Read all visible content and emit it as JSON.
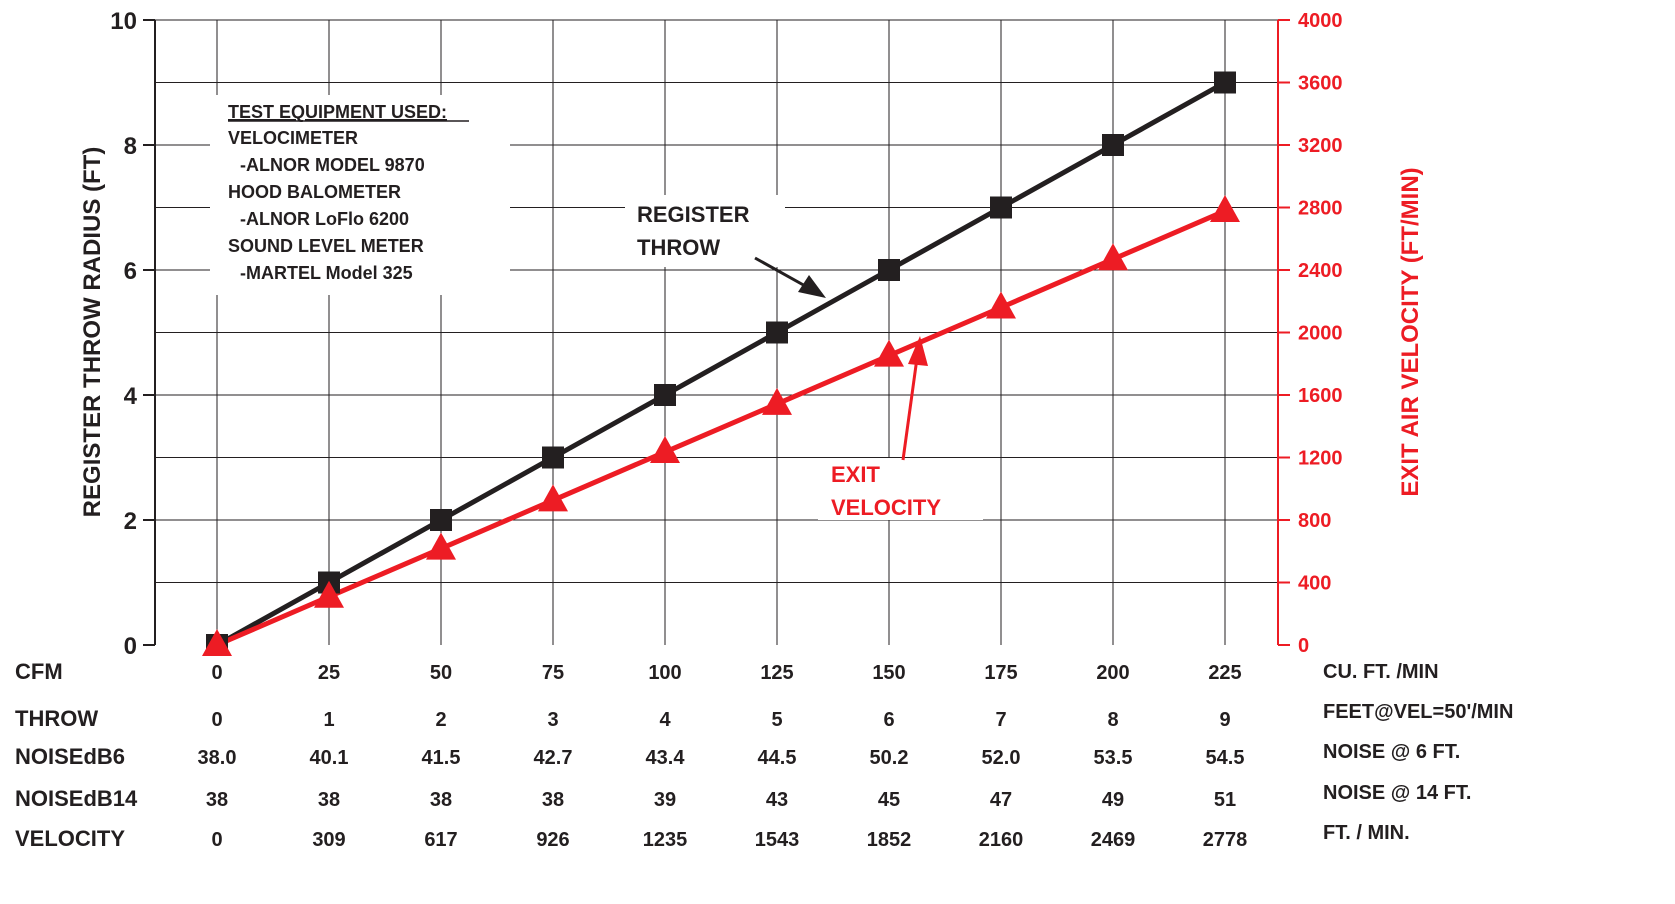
{
  "chart_data": {
    "type": "line",
    "x": [
      0,
      25,
      50,
      75,
      100,
      125,
      150,
      175,
      200,
      225
    ],
    "xlim": [
      0,
      225
    ],
    "ylim_left": [
      0,
      10
    ],
    "ylim_right": [
      0,
      4000
    ],
    "y_ticks_left": [
      "0",
      "2",
      "4",
      "6",
      "8",
      "10"
    ],
    "y_ticks_right": [
      "0",
      "400",
      "800",
      "1200",
      "1600",
      "2000",
      "2400",
      "2800",
      "3200",
      "3600",
      "4000"
    ],
    "ylabel_left": "REGISTER THROW RADIUS (FT)",
    "ylabel_right": "EXIT AIR VELOCITY (FT/MIN)",
    "grid": true,
    "series": [
      {
        "name": "REGISTER THROW",
        "axis": "left",
        "marker": "square",
        "color": "#231f20",
        "values": [
          0,
          1,
          2,
          3,
          4,
          5,
          6,
          7,
          8,
          9
        ]
      },
      {
        "name": "EXIT VELOCITY",
        "axis": "right",
        "marker": "triangle",
        "color": "#ed1c24",
        "values": [
          0,
          309,
          617,
          926,
          1235,
          1543,
          1852,
          2160,
          2469,
          2778
        ]
      }
    ],
    "annotations": {
      "throw_label": [
        "REGISTER",
        "THROW"
      ],
      "velocity_label": [
        "EXIT",
        "VELOCITY"
      ]
    },
    "equipment_box": {
      "title": "TEST EQUIPMENT USED:",
      "lines": [
        "VELOCIMETER",
        "-ALNOR MODEL 9870",
        "HOOD BALOMETER",
        "-ALNOR LoFlo 6200",
        "SOUND LEVEL METER",
        "-MARTEL Model 325"
      ]
    },
    "table": [
      {
        "label": "CFM",
        "unit": "CU. FT. /MIN",
        "values": [
          "0",
          "25",
          "50",
          "75",
          "100",
          "125",
          "150",
          "175",
          "200",
          "225"
        ]
      },
      {
        "label": "THROW",
        "unit": "FEET@VEL=50'/MIN",
        "values": [
          "0",
          "1",
          "2",
          "3",
          "4",
          "5",
          "6",
          "7",
          "8",
          "9"
        ]
      },
      {
        "label": "NOISEdB6",
        "unit": "NOISE @ 6 FT.",
        "values": [
          "38.0",
          "40.1",
          "41.5",
          "42.7",
          "43.4",
          "44.5",
          "50.2",
          "52.0",
          "53.5",
          "54.5"
        ]
      },
      {
        "label": "NOISEdB14",
        "unit": "NOISE @ 14 FT.",
        "values": [
          "38",
          "38",
          "38",
          "38",
          "39",
          "43",
          "45",
          "47",
          "49",
          "51"
        ]
      },
      {
        "label": "VELOCITY",
        "unit": "FT. / MIN.",
        "values": [
          "0",
          "309",
          "617",
          "926",
          "1235",
          "1543",
          "1852",
          "2160",
          "2469",
          "2778"
        ]
      }
    ],
    "colors": {
      "black": "#231f20",
      "red": "#ed1c24",
      "grid": "#231f20"
    }
  }
}
